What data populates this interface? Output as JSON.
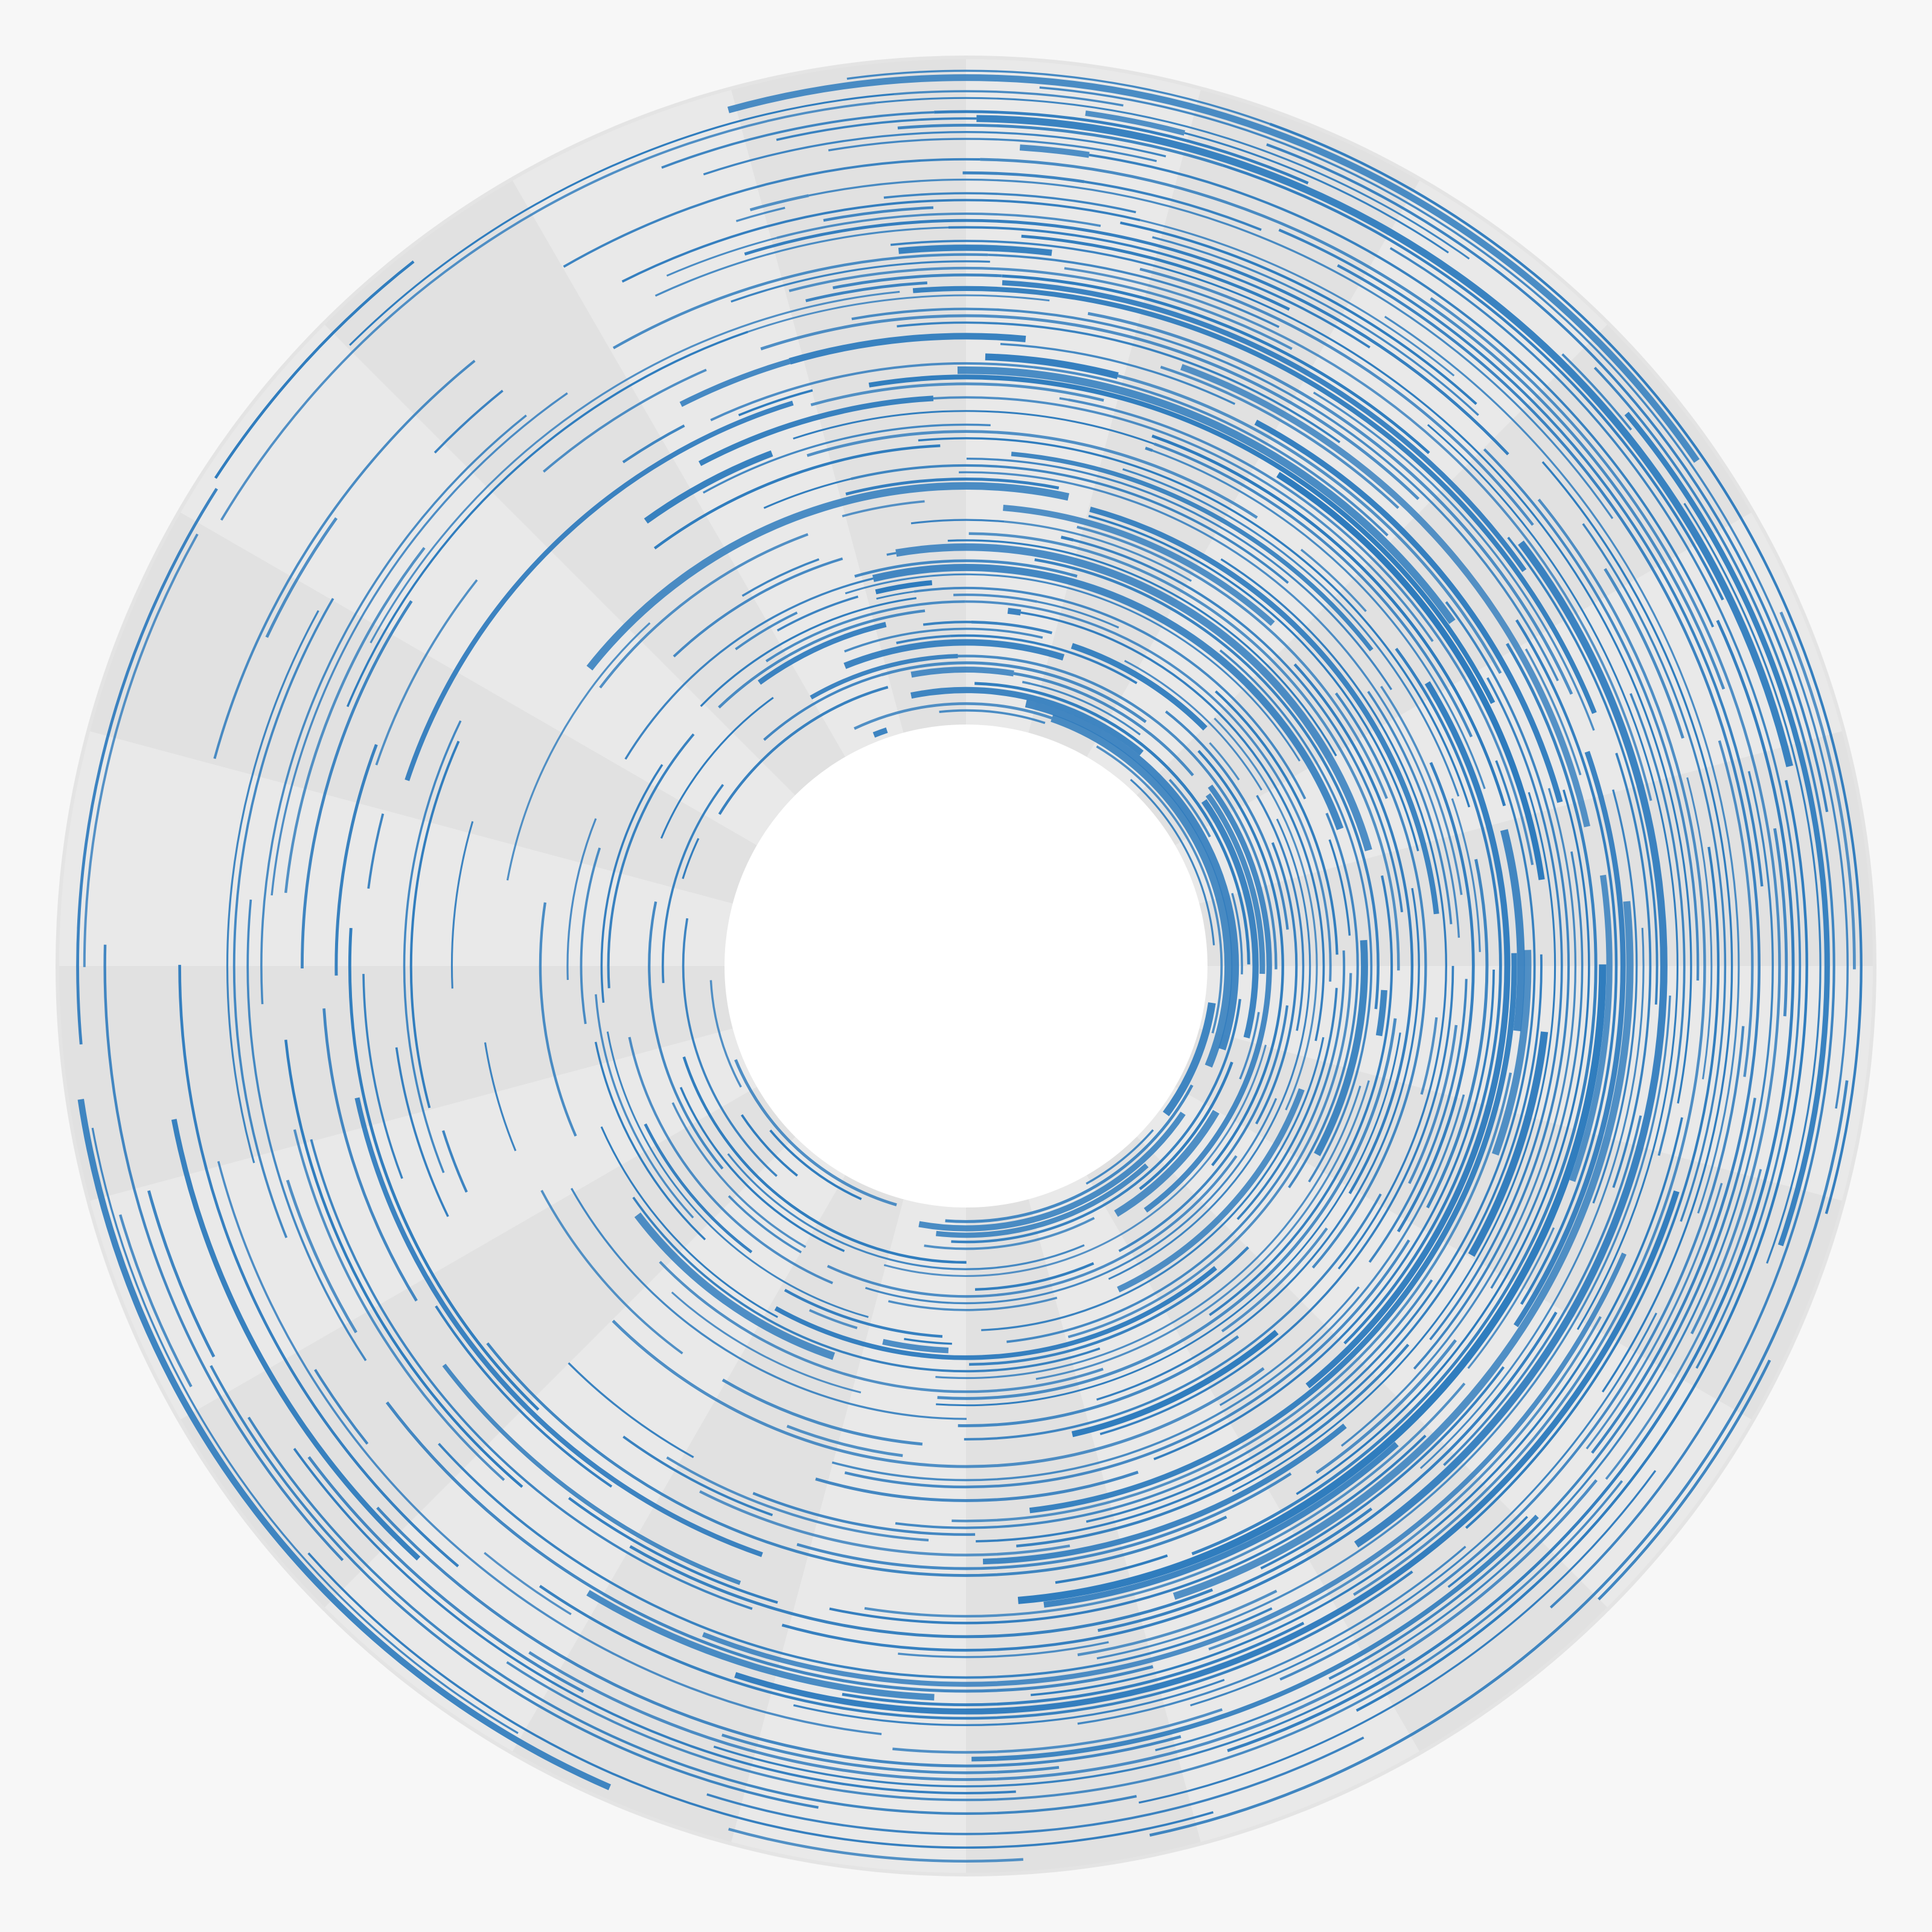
{
  "chart_data": {
    "type": "radial-arc",
    "title": "",
    "colors": {
      "background": "#f7f7f7",
      "band_light": "#e9e9e9",
      "band_dark": "#e1e1e1",
      "arc": "#2e7bbd"
    },
    "angle_range_deg": [
      0,
      360
    ],
    "sector_count": 24,
    "ring_count": 96,
    "arc_density_by_angle": [
      {
        "angle_deg": 0,
        "density": 0.85
      },
      {
        "angle_deg": 30,
        "density": 0.95
      },
      {
        "angle_deg": 60,
        "density": 0.95
      },
      {
        "angle_deg": 90,
        "density": 0.92
      },
      {
        "angle_deg": 120,
        "density": 0.8
      },
      {
        "angle_deg": 150,
        "density": 0.65
      },
      {
        "angle_deg": 180,
        "density": 0.55
      },
      {
        "angle_deg": 210,
        "density": 0.4
      },
      {
        "angle_deg": 240,
        "density": 0.3
      },
      {
        "angle_deg": 270,
        "density": 0.3
      },
      {
        "angle_deg": 300,
        "density": 0.4
      },
      {
        "angle_deg": 330,
        "density": 0.55
      },
      {
        "angle_deg": 360,
        "density": 0.85
      }
    ],
    "legend": "none",
    "grid": false
  }
}
